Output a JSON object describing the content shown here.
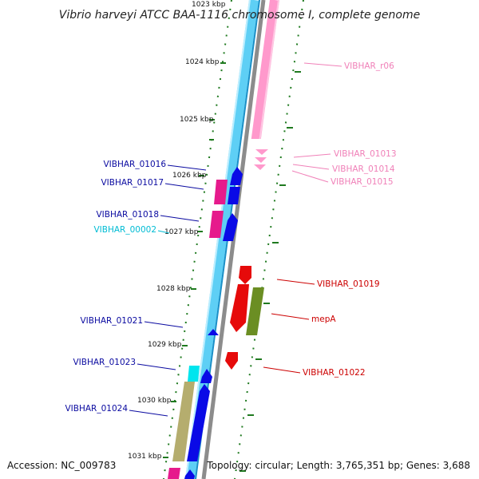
{
  "title": "Vibrio harveyi ATCC BAA-1116 chromosome I, complete genome",
  "footer": {
    "accession": "Accession: NC_009783",
    "topology": "Topology: circular; Length: 3,765,351 bp; Genes: 3,688"
  },
  "colors": {
    "backbone_light": "#5ecff5",
    "backbone_dark": "#1a8fc7",
    "backbone_gray": "#8c8c8c",
    "ruler_green": "#1f7a1f",
    "cds_blue": "#0a0ae6",
    "cds_red": "#e60a0a",
    "rna_pink": "#ff99cc",
    "gene_magenta": "#e61a8c",
    "gene_olive": "#6b8e23",
    "gene_khaki": "#b5ad6e",
    "gene_cyan": "#00e5ee",
    "label_blue": "#0a0aa0",
    "label_red": "#cc0000",
    "label_pink": "#f080b8",
    "label_cyan": "#00bcd4"
  },
  "ticks": [
    {
      "label": "1023 kbp"
    },
    {
      "label": "1024 kbp"
    },
    {
      "label": "1025 kbp"
    },
    {
      "label": "1026 kbp"
    },
    {
      "label": "1027 kbp"
    },
    {
      "label": "1028 kbp"
    },
    {
      "label": "1029 kbp"
    },
    {
      "label": "1030 kbp"
    },
    {
      "label": "1031 kbp"
    }
  ],
  "gene_labels": {
    "left": [
      {
        "name": "VIBHAR_01016",
        "color": "#0a0aa0"
      },
      {
        "name": "VIBHAR_01017",
        "color": "#0a0aa0"
      },
      {
        "name": "VIBHAR_01018",
        "color": "#0a0aa0"
      },
      {
        "name": "VIBHAR_00002",
        "color": "#00bcd4"
      },
      {
        "name": "VIBHAR_01021",
        "color": "#0a0aa0"
      },
      {
        "name": "VIBHAR_01023",
        "color": "#0a0aa0"
      },
      {
        "name": "VIBHAR_01024",
        "color": "#0a0aa0"
      }
    ],
    "right": [
      {
        "name": "VIBHAR_r06",
        "color": "#f080b8"
      },
      {
        "name": "VIBHAR_01013",
        "color": "#f080b8"
      },
      {
        "name": "VIBHAR_01014",
        "color": "#f080b8"
      },
      {
        "name": "VIBHAR_01015",
        "color": "#f080b8"
      },
      {
        "name": "VIBHAR_01019",
        "color": "#cc0000"
      },
      {
        "name": "mepA",
        "color": "#cc0000"
      },
      {
        "name": "VIBHAR_01022",
        "color": "#cc0000"
      }
    ]
  }
}
